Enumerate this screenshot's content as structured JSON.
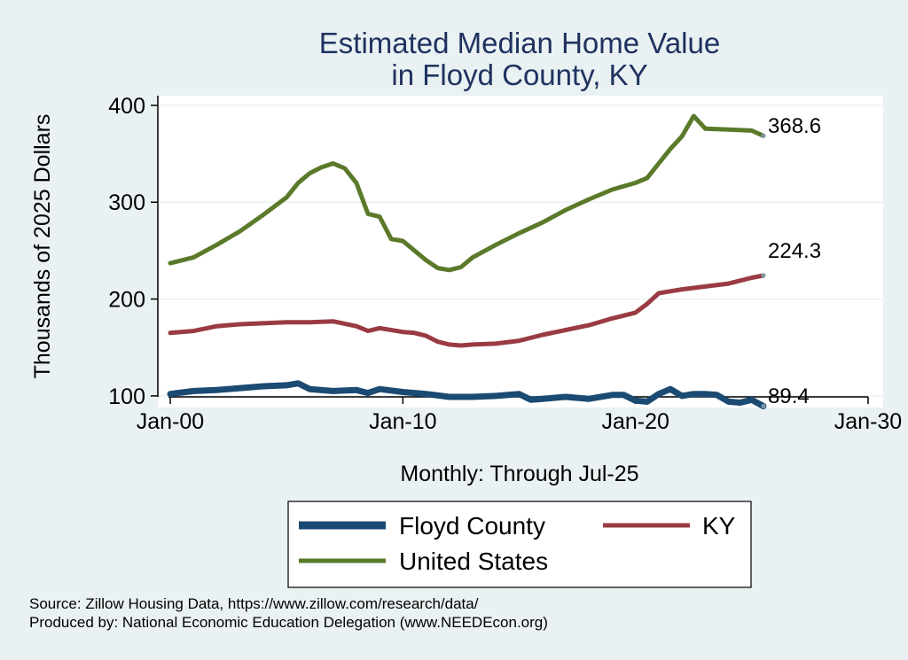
{
  "chart_data": {
    "type": "line",
    "title": [
      "Estimated Median Home Value",
      "in Floyd County, KY"
    ],
    "ylabel": "Thousands of 2025 Dollars",
    "xlabel": "Monthly: Through Jul-25",
    "xlim": [
      2000.0,
      2030.0
    ],
    "ylim": [
      88,
      410
    ],
    "yticks": [
      100,
      200,
      300,
      400
    ],
    "xticks": [
      {
        "label": "Jan-00",
        "value": 2000.0
      },
      {
        "label": "Jan-10",
        "value": 2010.0
      },
      {
        "label": "Jan-20",
        "value": 2020.0
      },
      {
        "label": "Jan-30",
        "value": 2030.0
      }
    ],
    "grid": true,
    "series": [
      {
        "name": "Floyd County",
        "color": "#1b4a72",
        "end_label": "89.4",
        "x": [
          2000.0,
          2001.0,
          2002.0,
          2003.0,
          2004.0,
          2005.0,
          2005.5,
          2006.0,
          2007.0,
          2008.0,
          2008.5,
          2009.0,
          2010.0,
          2011.0,
          2012.0,
          2013.0,
          2014.0,
          2015.0,
          2015.5,
          2016.0,
          2017.0,
          2018.0,
          2019.0,
          2019.5,
          2020.0,
          2020.5,
          2021.0,
          2021.5,
          2022.0,
          2022.5,
          2023.0,
          2023.5,
          2024.0,
          2024.5,
          2025.0,
          2025.5
        ],
        "values": [
          102,
          105,
          106,
          108,
          110,
          111,
          113,
          107,
          105,
          106,
          103,
          107,
          104,
          102,
          99,
          99,
          100,
          102,
          96,
          97,
          99,
          97,
          101,
          101,
          95,
          94,
          102,
          107,
          100,
          102,
          102,
          101,
          94,
          93,
          96,
          89.4
        ]
      },
      {
        "name": "KY",
        "color": "#9a3b43",
        "end_label": "224.3",
        "x": [
          2000.0,
          2001.0,
          2002.0,
          2003.0,
          2004.0,
          2005.0,
          2006.0,
          2007.0,
          2008.0,
          2008.5,
          2009.0,
          2010.0,
          2010.5,
          2011.0,
          2011.5,
          2012.0,
          2012.5,
          2013.0,
          2014.0,
          2015.0,
          2016.0,
          2017.0,
          2018.0,
          2019.0,
          2020.0,
          2020.5,
          2021.0,
          2022.0,
          2023.0,
          2024.0,
          2024.5,
          2025.0,
          2025.5
        ],
        "values": [
          165,
          167,
          172,
          174,
          175,
          176,
          176,
          177,
          172,
          167,
          170,
          166,
          165,
          162,
          156,
          153,
          152,
          153,
          154,
          157,
          163,
          168,
          173,
          180,
          186,
          195,
          206,
          210,
          213,
          216,
          219,
          222,
          224.3
        ]
      },
      {
        "name": "United States",
        "color": "#5a7a2a",
        "end_label": "368.6",
        "x": [
          2000.0,
          2001.0,
          2002.0,
          2003.0,
          2004.0,
          2005.0,
          2005.5,
          2006.0,
          2006.5,
          2007.0,
          2007.5,
          2008.0,
          2008.5,
          2009.0,
          2009.5,
          2010.0,
          2011.0,
          2011.5,
          2012.0,
          2012.5,
          2013.0,
          2014.0,
          2015.0,
          2016.0,
          2017.0,
          2018.0,
          2019.0,
          2020.0,
          2020.5,
          2021.0,
          2021.5,
          2022.0,
          2022.5,
          2023.0,
          2024.0,
          2025.0,
          2025.5
        ],
        "values": [
          237,
          243,
          256,
          270,
          287,
          305,
          320,
          330,
          336,
          340,
          335,
          320,
          288,
          285,
          262,
          260,
          240,
          232,
          230,
          233,
          243,
          256,
          268,
          279,
          292,
          303,
          313,
          320,
          325,
          340,
          355,
          368,
          389,
          376,
          375,
          374,
          368.6
        ]
      }
    ],
    "legend": {
      "items": [
        "Floyd County",
        "KY",
        "United States"
      ],
      "placement": "bottom"
    }
  },
  "footer": {
    "source": "Source: Zillow Housing Data, https://www.zillow.com/research/data/",
    "produced": "Produced by: National Economic Education Delegation (www.NEEDEcon.org)"
  }
}
